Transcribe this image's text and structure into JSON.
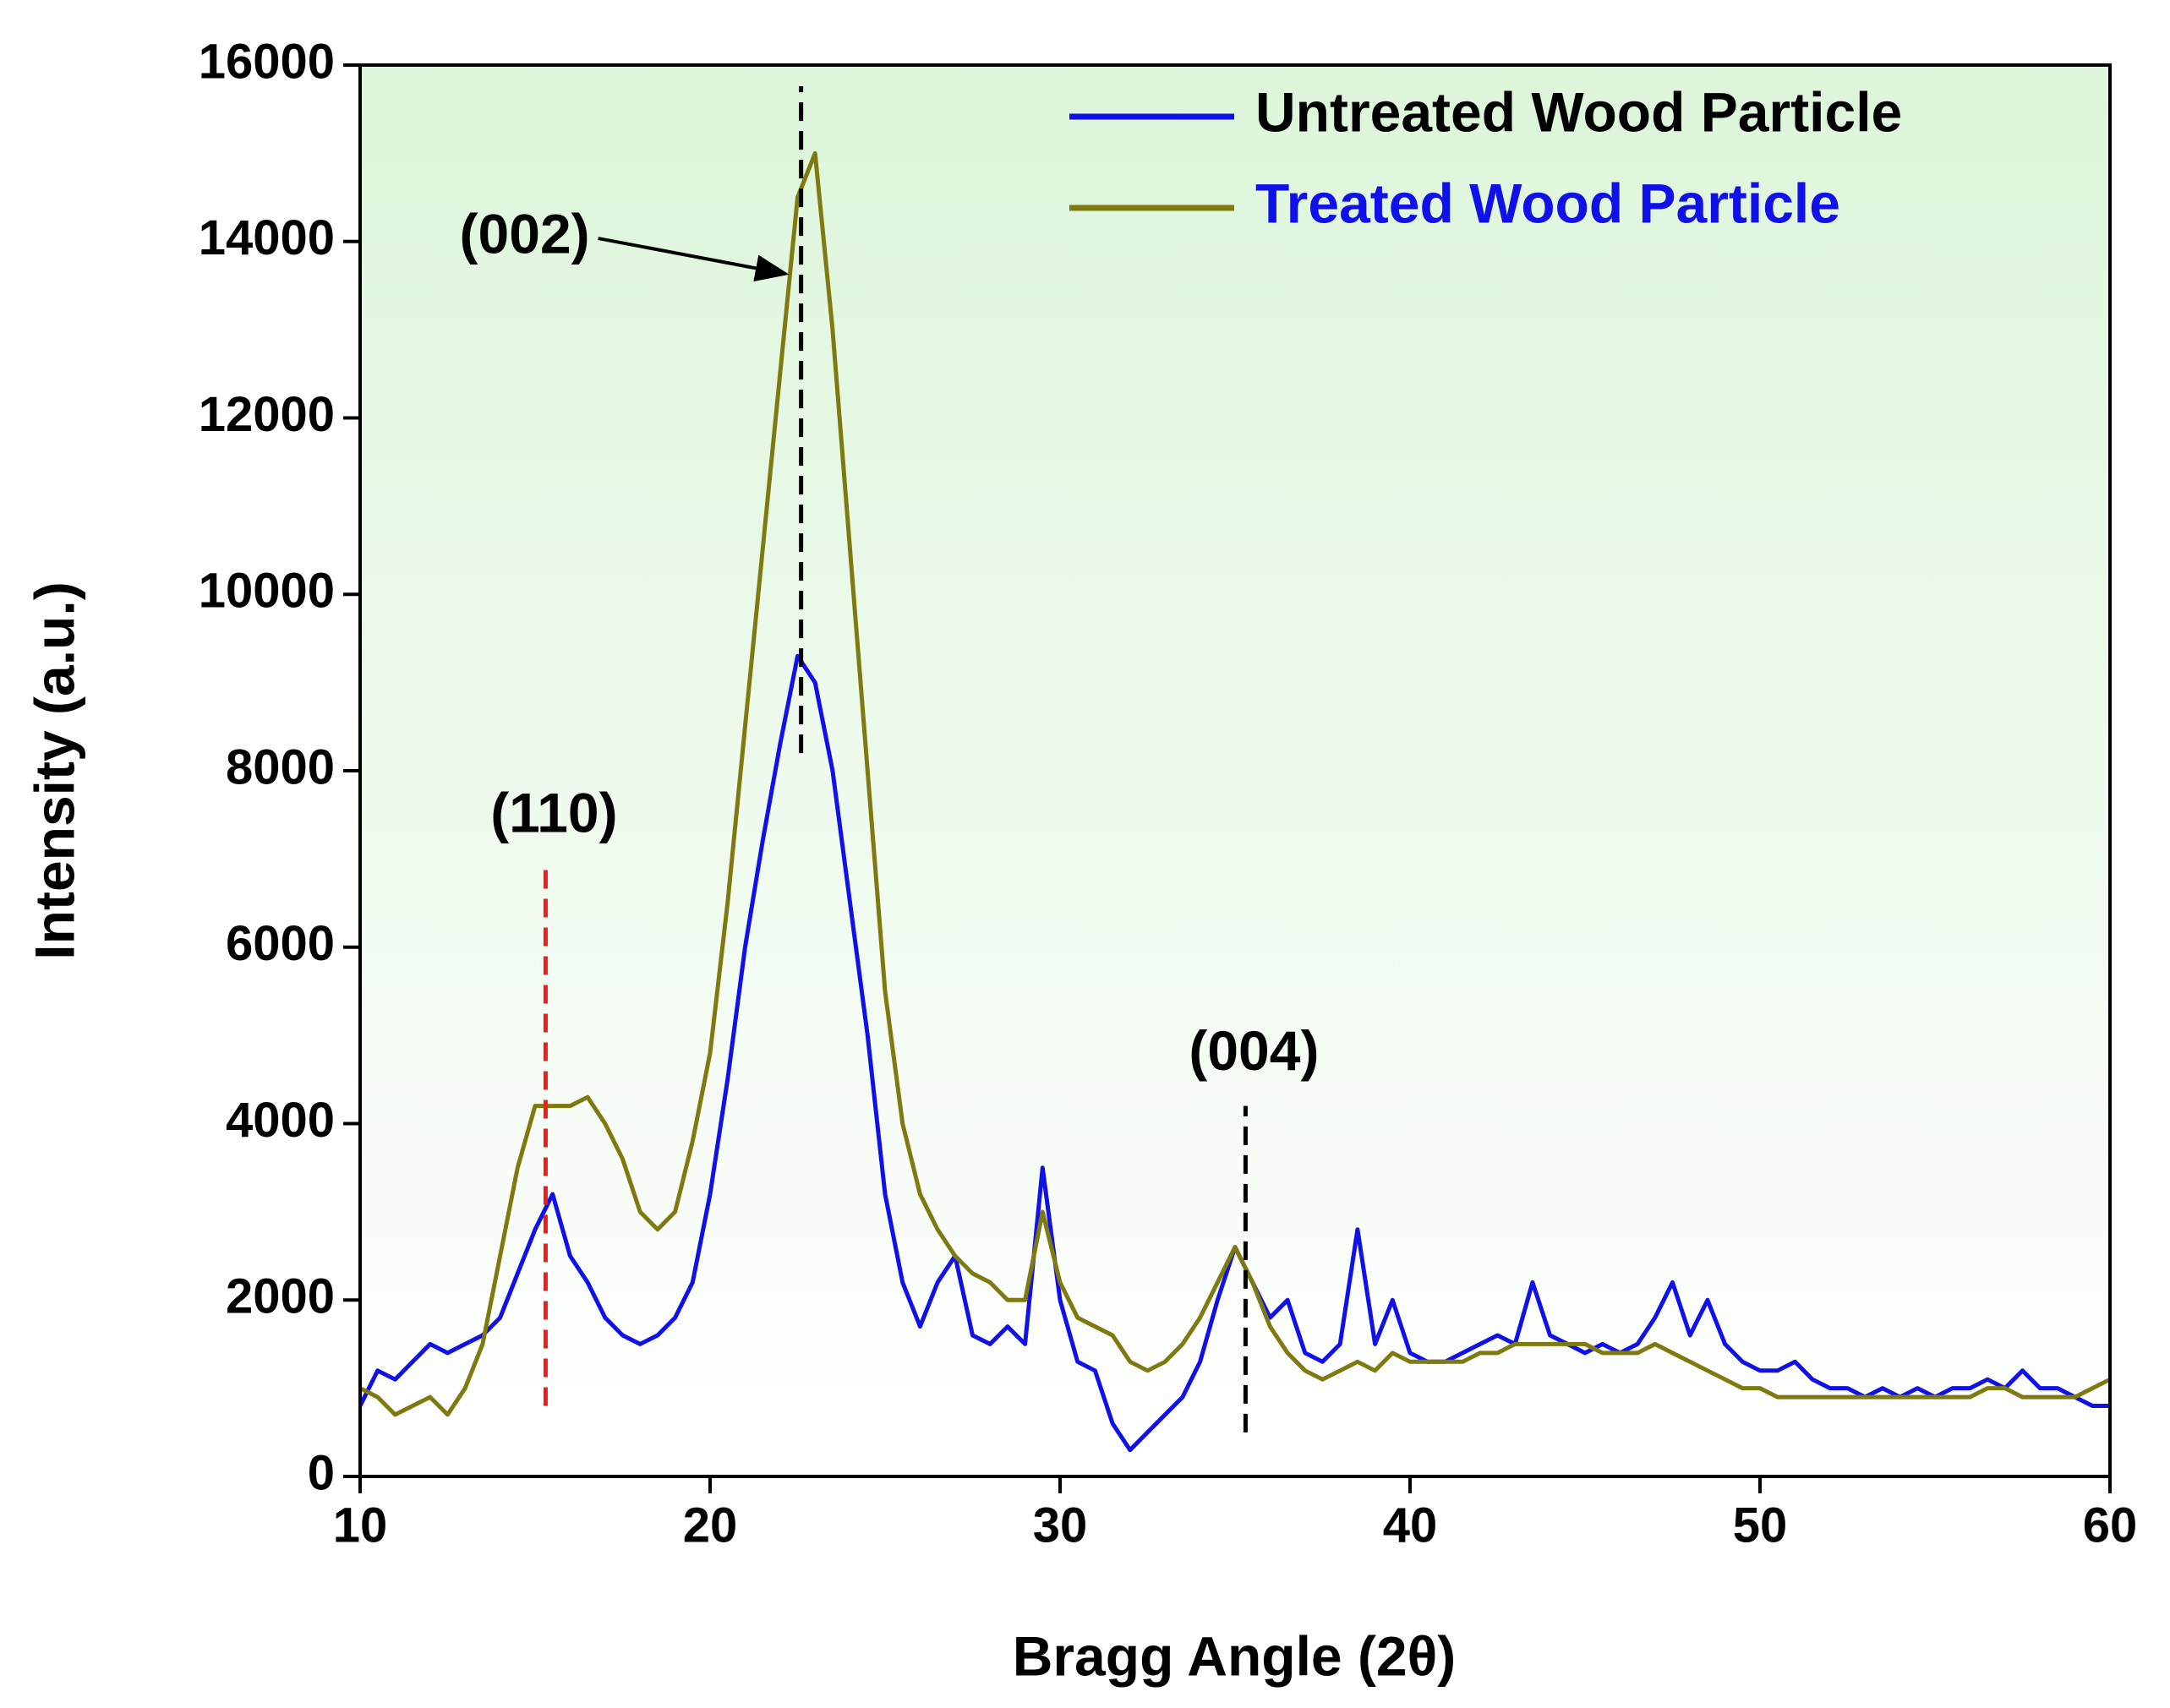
{
  "chart_data": {
    "type": "line",
    "xlabel": "Bragg Angle (2θ)",
    "ylabel": "Intensity (a.u.)",
    "xlim": [
      10,
      60
    ],
    "xticks": [
      10,
      20,
      30,
      40,
      50,
      60
    ],
    "ylim": [
      0,
      16000
    ],
    "yticks": [
      0,
      2000,
      4000,
      6000,
      8000,
      10000,
      12000,
      14000,
      16000
    ],
    "legend": "upper right",
    "x": [
      10,
      10.5,
      11,
      11.5,
      12,
      12.5,
      13,
      13.5,
      14,
      14.5,
      15,
      15.5,
      16,
      16.5,
      17,
      17.5,
      18,
      18.5,
      19,
      19.5,
      20,
      20.5,
      21,
      21.5,
      22,
      22.5,
      23,
      23.5,
      24,
      24.5,
      25,
      25.5,
      26,
      26.5,
      27,
      27.5,
      28,
      28.5,
      29,
      29.5,
      30,
      30.5,
      31,
      31.5,
      32,
      32.5,
      33,
      33.5,
      34,
      34.5,
      35,
      35.5,
      36,
      36.5,
      37,
      37.5,
      38,
      38.5,
      39,
      39.5,
      40,
      40.5,
      41,
      41.5,
      42,
      42.5,
      43,
      43.5,
      44,
      44.5,
      45,
      45.5,
      46,
      46.5,
      47,
      47.5,
      48,
      48.5,
      49,
      49.5,
      50,
      50.5,
      51,
      51.5,
      52,
      52.5,
      53,
      53.5,
      54,
      54.5,
      55,
      55.5,
      56,
      56.5,
      57,
      57.5,
      58,
      58.5,
      59,
      59.5,
      60
    ],
    "series": [
      {
        "name": "Untreated Wood Particle",
        "color": "#1010e8",
        "label_color": "#000000",
        "values": [
          800,
          1200,
          1100,
          1300,
          1500,
          1400,
          1500,
          1600,
          1800,
          2300,
          2800,
          3200,
          2500,
          2200,
          1800,
          1600,
          1500,
          1600,
          1800,
          2200,
          3200,
          4500,
          6000,
          7200,
          8300,
          9300,
          9000,
          8000,
          6500,
          5000,
          3200,
          2200,
          1700,
          2200,
          2500,
          1600,
          1500,
          1700,
          1500,
          3500,
          2000,
          1300,
          1200,
          600,
          300,
          500,
          700,
          900,
          1300,
          2000,
          2600,
          2200,
          1800,
          2000,
          1400,
          1300,
          1500,
          2800,
          1500,
          2000,
          1400,
          1300,
          1300,
          1400,
          1500,
          1600,
          1500,
          2200,
          1600,
          1500,
          1400,
          1500,
          1400,
          1500,
          1800,
          2200,
          1600,
          2000,
          1500,
          1300,
          1200,
          1200,
          1300,
          1100,
          1000,
          1000,
          900,
          1000,
          900,
          1000,
          900,
          1000,
          1000,
          1100,
          1000,
          1200,
          1000,
          1000,
          900,
          800,
          800
        ]
      },
      {
        "name": "Treated Wood Particle",
        "color": "#7f7a10",
        "label_color": "#1010e8",
        "values": [
          1000,
          900,
          700,
          800,
          900,
          700,
          1000,
          1500,
          2500,
          3500,
          4200,
          4200,
          4200,
          4300,
          4000,
          3600,
          3000,
          2800,
          3000,
          3800,
          4800,
          6500,
          8500,
          10500,
          12500,
          14500,
          15000,
          13000,
          10500,
          8000,
          5500,
          4000,
          3200,
          2800,
          2500,
          2300,
          2200,
          2000,
          2000,
          3000,
          2200,
          1800,
          1700,
          1600,
          1300,
          1200,
          1300,
          1500,
          1800,
          2200,
          2600,
          2200,
          1700,
          1400,
          1200,
          1100,
          1200,
          1300,
          1200,
          1400,
          1300,
          1300,
          1300,
          1300,
          1400,
          1400,
          1500,
          1500,
          1500,
          1500,
          1500,
          1400,
          1400,
          1400,
          1500,
          1400,
          1300,
          1200,
          1100,
          1000,
          1000,
          900,
          900,
          900,
          900,
          900,
          900,
          900,
          900,
          900,
          900,
          900,
          900,
          1000,
          1000,
          900,
          900,
          900,
          900,
          1000,
          1100
        ]
      }
    ],
    "annotations": [
      {
        "text": "(110)",
        "x": 15.3,
        "y_from": 800,
        "y_to": 6900,
        "color": "#ee1c1c"
      },
      {
        "text": "(002)",
        "x": 22.6,
        "y_from": 8200,
        "y_to": 15760,
        "color": "#000000"
      },
      {
        "text": "(004)",
        "x": 35.3,
        "y_from": 500,
        "y_to": 4200,
        "color": "#000000"
      }
    ]
  }
}
